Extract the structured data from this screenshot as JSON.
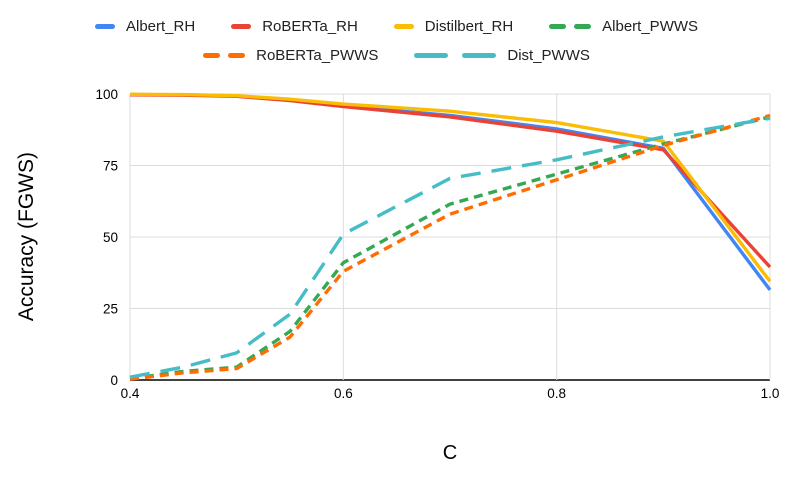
{
  "chart_data": {
    "type": "line",
    "title": "",
    "xlabel": "C",
    "ylabel": "Accuracy (FGWS)",
    "xlim": [
      0.4,
      1.0
    ],
    "ylim": [
      0,
      100
    ],
    "grid": true,
    "legend_position": "top",
    "x": [
      0.4,
      0.45,
      0.5,
      0.55,
      0.6,
      0.7,
      0.8,
      0.9,
      1.0
    ],
    "xticks": {
      "values": [
        0.4,
        0.6,
        0.8,
        1.0
      ],
      "labels": [
        "0.4",
        "0.6",
        "0.8",
        "1.0"
      ]
    },
    "yticks": {
      "values": [
        0,
        25,
        50,
        75,
        100
      ],
      "labels": [
        "0",
        "25",
        "50",
        "75",
        "100"
      ]
    },
    "series": [
      {
        "name": "Albert_RH",
        "color": "#4285F4",
        "style": "solid",
        "values": [
          99.8,
          99.7,
          99.3,
          97.9,
          95.8,
          92.5,
          87.8,
          81.0,
          31.5
        ]
      },
      {
        "name": "RoBERTa_RH",
        "color": "#EA4335",
        "style": "solid",
        "values": [
          99.7,
          99.6,
          99.2,
          97.7,
          95.6,
          92.0,
          87.0,
          80.5,
          39.5
        ]
      },
      {
        "name": "Distilbert_RH",
        "color": "#FBBC04",
        "style": "solid",
        "values": [
          99.9,
          99.8,
          99.4,
          98.2,
          96.5,
          94.0,
          90.0,
          83.5,
          34.5
        ]
      },
      {
        "name": "Albert_PWWS",
        "color": "#34A853",
        "style": "dashed",
        "values": [
          0.5,
          3.0,
          4.5,
          17.0,
          41.0,
          61.5,
          72.0,
          82.5,
          92.0
        ]
      },
      {
        "name": "RoBERTa_PWWS",
        "color": "#FF6D01",
        "style": "dashed",
        "values": [
          0.3,
          2.5,
          4.0,
          15.0,
          38.0,
          58.0,
          70.0,
          82.0,
          92.5
        ]
      },
      {
        "name": "Dist_PWWS",
        "color": "#46BDC6",
        "style": "longdash",
        "values": [
          1.0,
          4.5,
          9.5,
          23.0,
          51.0,
          70.5,
          77.0,
          85.0,
          91.5
        ]
      }
    ],
    "legend_rows": [
      [
        "Albert_RH",
        "RoBERTa_RH",
        "Distilbert_RH",
        "Albert_PWWS"
      ],
      [
        "RoBERTa_PWWS",
        "Dist_PWWS"
      ]
    ],
    "colors": {
      "axis_line": "#424242",
      "gridline": "#dcdcdc",
      "tick_label": "#000000",
      "legend_text": "#212121"
    }
  }
}
